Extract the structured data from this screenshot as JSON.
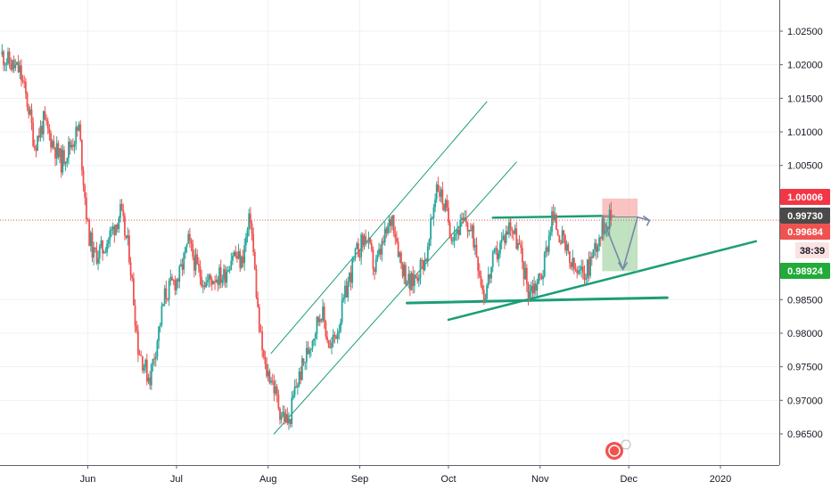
{
  "chart_data": {
    "type": "candlestick",
    "symbol_hint": "price chart",
    "x_axis": {
      "labels": [
        "Jun",
        "Jul",
        "Aug",
        "Sep",
        "Oct",
        "Nov",
        "Dec",
        "2020"
      ],
      "label_times": [
        0,
        30,
        61,
        92,
        122,
        153,
        183,
        214
      ]
    },
    "y_axis": {
      "ticks": [
        "1.02500",
        "1.02000",
        "1.01500",
        "1.01000",
        "1.00500",
        "0.98500",
        "0.98000",
        "0.97500",
        "0.97000",
        "0.96500"
      ],
      "tick_values": [
        1.025,
        1.02,
        1.015,
        1.01,
        1.005,
        0.985,
        0.98,
        0.975,
        0.97,
        0.965
      ],
      "ylim": [
        0.9625,
        1.0275
      ]
    },
    "price_tags": [
      {
        "label": "1.00006",
        "value": 1.00006,
        "bg": "#f23645",
        "fg": "#ffffff",
        "kind": "target-top"
      },
      {
        "label": "0.99730",
        "value": 0.9973,
        "bg": "#4a4a4a",
        "fg": "#ffffff",
        "kind": "entry"
      },
      {
        "label": "0.99684",
        "value": 0.99684,
        "bg": "#ef5350",
        "fg": "#ffffff",
        "kind": "last-price"
      },
      {
        "label": "38:39",
        "value": 0.9941,
        "bg": "#fbe2e2",
        "fg": "#131722",
        "kind": "countdown"
      },
      {
        "label": "0.98924",
        "value": 0.98924,
        "bg": "#22ab38",
        "fg": "#ffffff",
        "kind": "target-bottom"
      }
    ],
    "current_price_line": 0.99684,
    "colors": {
      "up": "#26a69a",
      "down": "#ef5350",
      "trend": "#1b9e77",
      "grid": "#eef0f3",
      "axis_border": "#5d606b",
      "arrow": "#7887a8"
    },
    "price_path": {
      "times": [
        -29,
        -26,
        -23,
        -20,
        -18,
        -15,
        -12,
        -9,
        -6,
        -3,
        0,
        2,
        5,
        8,
        11,
        14,
        17,
        20,
        21,
        23,
        26,
        28,
        31,
        34,
        37,
        40,
        43,
        46,
        49,
        52,
        55,
        58,
        60,
        62,
        65,
        68,
        70,
        73,
        76,
        79,
        82,
        85,
        88,
        91,
        94,
        97,
        100,
        103,
        106,
        109,
        112,
        115,
        118,
        121,
        123,
        125,
        128,
        131,
        134,
        137,
        140,
        143,
        146,
        149,
        152,
        154,
        157,
        160,
        163,
        166,
        169,
        172,
        175,
        177
      ],
      "values": [
        1.0215,
        1.02,
        1.019,
        1.0135,
        1.008,
        1.0115,
        1.0085,
        1.0055,
        1.008,
        1.0105,
        0.9955,
        0.9915,
        0.9925,
        0.995,
        0.998,
        0.992,
        0.978,
        0.974,
        0.9735,
        0.978,
        0.9855,
        0.987,
        0.9885,
        0.9935,
        0.9895,
        0.9875,
        0.9885,
        0.9885,
        0.992,
        0.9905,
        0.9975,
        0.9805,
        0.9745,
        0.9735,
        0.9685,
        0.9665,
        0.9715,
        0.9755,
        0.9795,
        0.9835,
        0.9775,
        0.9815,
        0.9875,
        0.992,
        0.9945,
        0.9895,
        0.9935,
        0.9975,
        0.9905,
        0.987,
        0.9895,
        0.992,
        1.0025,
        0.9985,
        0.995,
        0.9955,
        0.9965,
        0.9935,
        0.9855,
        0.9905,
        0.9935,
        0.9965,
        0.9925,
        0.9865,
        0.9875,
        0.9895,
        0.9975,
        0.9945,
        0.9905,
        0.9885,
        0.9895,
        0.9935,
        0.9965,
        0.9971
      ]
    },
    "trendlines": [
      {
        "t1": 62,
        "v1": 0.977,
        "t2": 135,
        "v2": 1.0145,
        "width": 1
      },
      {
        "t1": 63,
        "v1": 0.965,
        "t2": 145,
        "v2": 1.0055,
        "width": 1
      },
      {
        "t1": 108,
        "v1": 0.9845,
        "t2": 196,
        "v2": 0.9853,
        "width": 3
      },
      {
        "t1": 122,
        "v1": 0.982,
        "t2": 226,
        "v2": 0.9937,
        "width": 2.5
      },
      {
        "t1": 137,
        "v1": 0.9972,
        "t2": 178,
        "v2": 0.9975,
        "width": 2.5
      }
    ],
    "position_box": {
      "t1": 174,
      "t2": 186,
      "entry": 0.9973,
      "stop": 1.00006,
      "target": 0.98924,
      "stop_color": "#f7a9a8",
      "target_color": "#a5d6a7"
    },
    "projection_arrows": [
      {
        "points": [
          [
            174,
            0.9973
          ],
          [
            181,
            0.9895
          ],
          [
            186,
            0.9973
          ]
        ]
      },
      {
        "points": [
          [
            186,
            0.9973
          ],
          [
            190,
            0.9968
          ]
        ]
      }
    ],
    "grid": true,
    "legend": "none"
  }
}
